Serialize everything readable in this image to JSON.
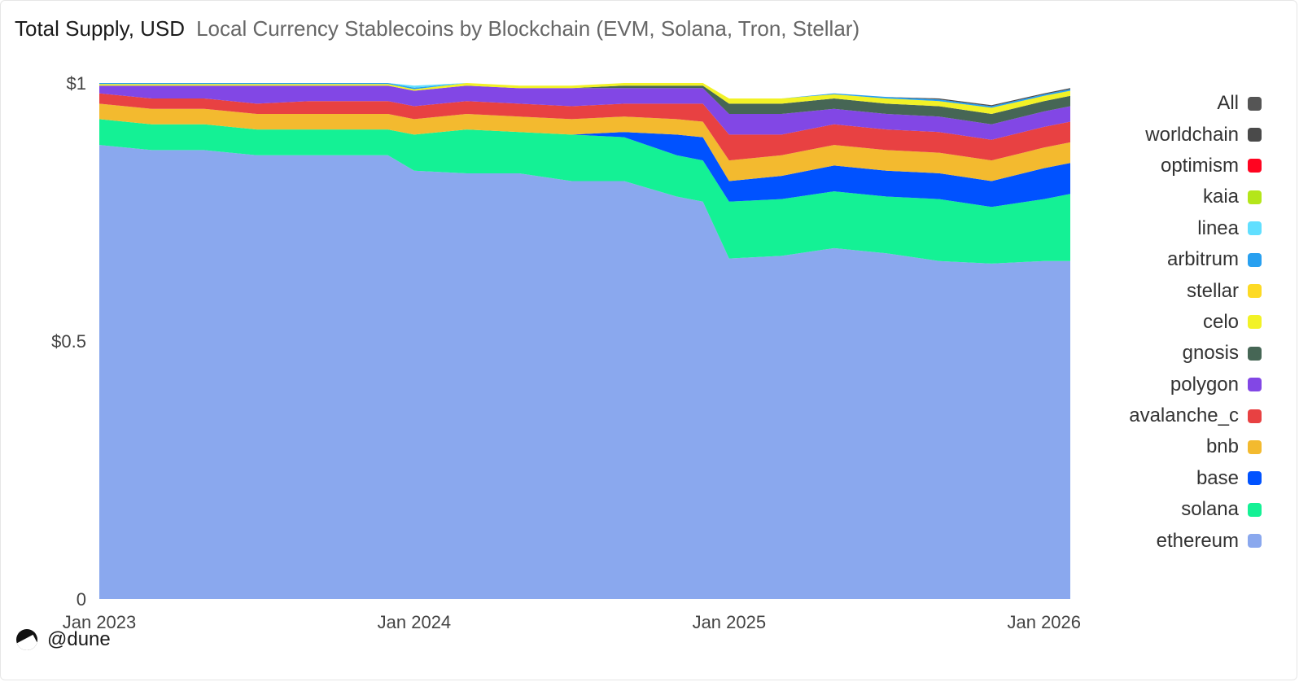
{
  "header": {
    "title": "Total Supply, USD",
    "subtitle": "Local Currency Stablecoins by Blockchain (EVM, Solana, Tron, Stellar)"
  },
  "footer": {
    "handle": "@dune",
    "logo_icon": "dune-logo-icon"
  },
  "chart_data": {
    "type": "area",
    "stacked": true,
    "normalized": true,
    "title": "Total Supply, USD",
    "subtitle": "Local Currency Stablecoins by Blockchain (EVM, Solana, Tron, Stellar)",
    "xlabel": "",
    "ylabel": "",
    "ylim": [
      0,
      1
    ],
    "y_ticks": [
      {
        "value": 0,
        "label": "0"
      },
      {
        "value": 0.5,
        "label": "$0.5"
      },
      {
        "value": 1,
        "label": "$1"
      }
    ],
    "x_ticks": [
      {
        "value": "2023-01",
        "label": "Jan 2023"
      },
      {
        "value": "2024-01",
        "label": "Jan 2024"
      },
      {
        "value": "2025-01",
        "label": "Jan 2025"
      },
      {
        "value": "2026-01",
        "label": "Jan 2026"
      }
    ],
    "x": [
      "2023-01",
      "2023-03",
      "2023-05",
      "2023-07",
      "2023-09",
      "2023-11",
      "2023-12",
      "2024-01",
      "2024-03",
      "2024-05",
      "2024-07",
      "2024-09",
      "2024-11",
      "2024-12",
      "2025-01",
      "2025-03",
      "2025-05",
      "2025-07",
      "2025-09",
      "2025-11",
      "2026-01",
      "2026-02"
    ],
    "grid": false,
    "legend_position": "right",
    "legend": [
      "All",
      "worldchain",
      "optimism",
      "kaia",
      "linea",
      "arbitrum",
      "stellar",
      "celo",
      "gnosis",
      "polygon",
      "avalanche_c",
      "bnb",
      "base",
      "solana",
      "ethereum"
    ],
    "legend_colors": {
      "All": "#555555",
      "worldchain": "#4a4a4a",
      "optimism": "#ff0420",
      "kaia": "#b4e61a",
      "linea": "#61dfff",
      "arbitrum": "#28a0f0",
      "stellar": "#fdda24",
      "celo": "#f2f226",
      "gnosis": "#466655",
      "polygon": "#8247e5",
      "avalanche_c": "#e84142",
      "bnb": "#f3ba2f",
      "base": "#0052ff",
      "solana": "#14f195",
      "ethereum": "#8aa8ee"
    },
    "series": [
      {
        "name": "ethereum",
        "color": "#8aa8ee",
        "values": [
          0.88,
          0.87,
          0.87,
          0.86,
          0.86,
          0.86,
          0.86,
          0.83,
          0.825,
          0.825,
          0.81,
          0.81,
          0.78,
          0.77,
          0.66,
          0.665,
          0.68,
          0.67,
          0.655,
          0.65,
          0.655,
          0.655
        ]
      },
      {
        "name": "solana",
        "color": "#14f195",
        "values": [
          0.05,
          0.05,
          0.05,
          0.05,
          0.05,
          0.05,
          0.05,
          0.07,
          0.085,
          0.08,
          0.09,
          0.085,
          0.08,
          0.08,
          0.11,
          0.11,
          0.11,
          0.11,
          0.12,
          0.11,
          0.12,
          0.13
        ]
      },
      {
        "name": "base",
        "color": "#0052ff",
        "values": [
          0,
          0,
          0,
          0,
          0,
          0,
          0,
          0,
          0,
          0,
          0,
          0.01,
          0.04,
          0.045,
          0.04,
          0.045,
          0.05,
          0.05,
          0.05,
          0.05,
          0.06,
          0.06
        ]
      },
      {
        "name": "bnb",
        "color": "#f3ba2f",
        "values": [
          0.03,
          0.03,
          0.03,
          0.03,
          0.03,
          0.03,
          0.03,
          0.03,
          0.03,
          0.03,
          0.03,
          0.03,
          0.03,
          0.03,
          0.04,
          0.04,
          0.04,
          0.04,
          0.04,
          0.04,
          0.04,
          0.04
        ]
      },
      {
        "name": "avalanche_c",
        "color": "#e84142",
        "values": [
          0.02,
          0.02,
          0.02,
          0.02,
          0.025,
          0.025,
          0.025,
          0.025,
          0.025,
          0.025,
          0.025,
          0.025,
          0.03,
          0.035,
          0.05,
          0.04,
          0.04,
          0.04,
          0.04,
          0.04,
          0.04,
          0.04
        ]
      },
      {
        "name": "polygon",
        "color": "#8247e5",
        "values": [
          0.015,
          0.025,
          0.025,
          0.035,
          0.03,
          0.03,
          0.03,
          0.03,
          0.03,
          0.03,
          0.035,
          0.03,
          0.03,
          0.03,
          0.04,
          0.04,
          0.03,
          0.03,
          0.03,
          0.03,
          0.03,
          0.03
        ]
      },
      {
        "name": "gnosis",
        "color": "#466655",
        "values": [
          0,
          0,
          0,
          0,
          0,
          0,
          0,
          0,
          0,
          0,
          0,
          0.005,
          0.005,
          0.005,
          0.02,
          0.02,
          0.02,
          0.02,
          0.02,
          0.02,
          0.02,
          0.02
        ]
      },
      {
        "name": "celo",
        "color": "#f2f226",
        "values": [
          0.003,
          0.003,
          0.003,
          0.003,
          0.003,
          0.003,
          0.003,
          0.003,
          0.005,
          0.005,
          0.005,
          0.005,
          0.005,
          0.005,
          0.01,
          0.01,
          0.008,
          0.01,
          0.01,
          0.012,
          0.01,
          0.01
        ]
      },
      {
        "name": "stellar",
        "color": "#fdda24",
        "values": [
          0,
          0,
          0,
          0,
          0,
          0,
          0,
          0,
          0,
          0,
          0,
          0,
          0,
          0,
          0,
          0,
          0,
          0,
          0,
          0,
          0,
          0
        ]
      },
      {
        "name": "arbitrum",
        "color": "#28a0f0",
        "values": [
          0.002,
          0.002,
          0.002,
          0.002,
          0.002,
          0.002,
          0.002,
          0.003,
          0,
          0,
          0,
          0,
          0,
          0,
          0,
          0,
          0.002,
          0.003,
          0.003,
          0.003,
          0.003,
          0.003
        ]
      },
      {
        "name": "linea",
        "color": "#61dfff",
        "values": [
          0,
          0,
          0,
          0,
          0,
          0,
          0,
          0.004,
          0,
          0,
          0,
          0,
          0,
          0,
          0,
          0,
          0,
          0,
          0,
          0,
          0,
          0
        ]
      },
      {
        "name": "kaia",
        "color": "#b4e61a",
        "values": [
          0,
          0,
          0,
          0,
          0,
          0,
          0,
          0,
          0,
          0,
          0,
          0,
          0,
          0,
          0,
          0,
          0,
          0,
          0,
          0,
          0,
          0
        ]
      },
      {
        "name": "optimism",
        "color": "#ff0420",
        "values": [
          0,
          0,
          0,
          0,
          0,
          0,
          0,
          0,
          0,
          0,
          0,
          0,
          0,
          0,
          0,
          0,
          0,
          0,
          0,
          0,
          0,
          0
        ]
      },
      {
        "name": "worldchain",
        "color": "#4a4a4a",
        "values": [
          0,
          0,
          0,
          0,
          0,
          0,
          0,
          0,
          0,
          0,
          0,
          0,
          0,
          0,
          0,
          0,
          0,
          0,
          0.002,
          0.002,
          0.002,
          0.002
        ]
      }
    ]
  }
}
